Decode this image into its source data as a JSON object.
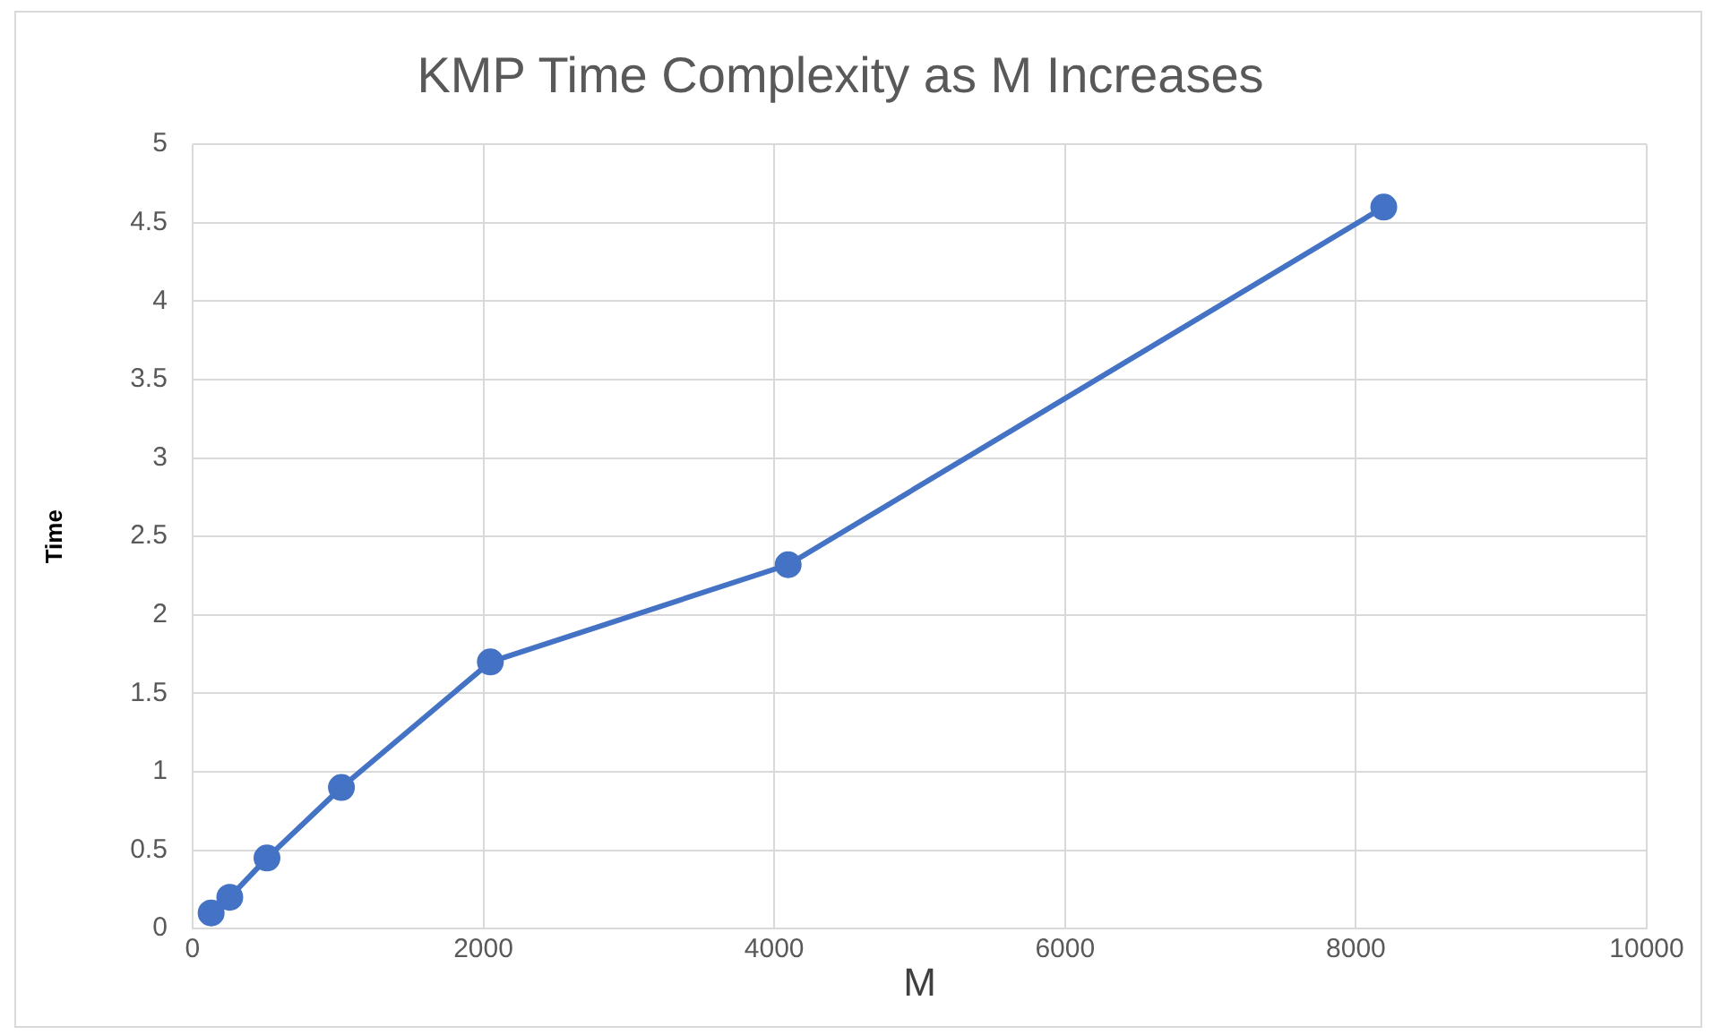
{
  "chart_data": {
    "type": "line",
    "title": "KMP Time Complexity as M Increases",
    "xlabel": "M",
    "ylabel": "Time",
    "x": [
      128,
      256,
      512,
      1024,
      2048,
      4096,
      8192
    ],
    "series": [
      {
        "color": "#4472c4",
        "values": [
          0.1,
          0.2,
          0.45,
          0.9,
          1.7,
          2.32,
          4.6
        ]
      }
    ],
    "xlim": [
      0,
      10000
    ],
    "xticks": [
      0,
      2000,
      4000,
      6000,
      8000,
      10000
    ],
    "ylim": [
      0,
      5
    ],
    "yticks": [
      0,
      0.5,
      1,
      1.5,
      2,
      2.5,
      3,
      3.5,
      4,
      4.5,
      5
    ],
    "grid": true,
    "marker": "circle",
    "line_style": "solid"
  }
}
